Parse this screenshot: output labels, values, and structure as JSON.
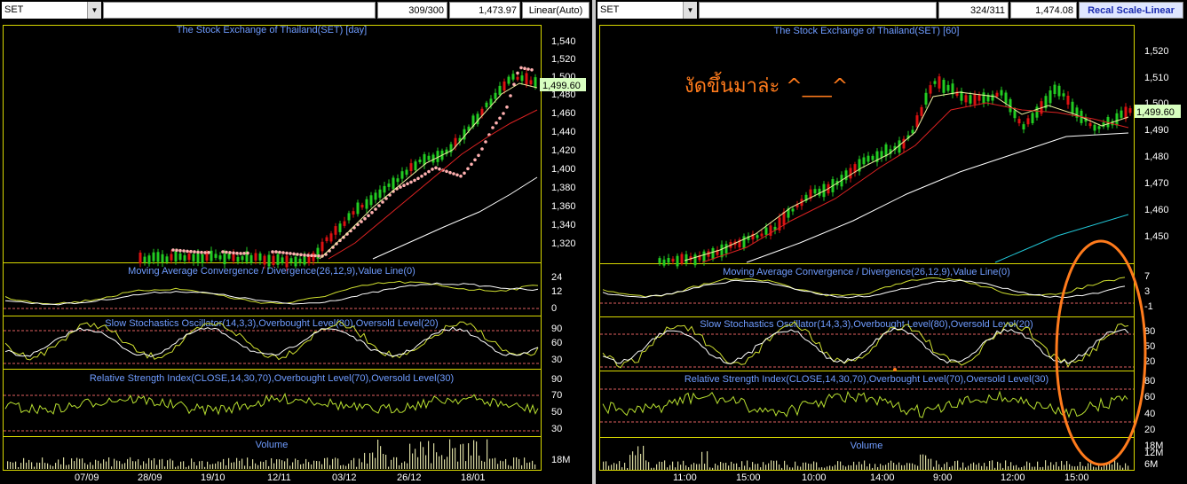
{
  "left": {
    "symbol": "SET",
    "counter": "309/300",
    "last_value": "1,473.97",
    "scale_label": "Linear(Auto)",
    "price_title": "The Stock Exchange of Thailand(SET) [day]",
    "price_ticks": [
      "1,540",
      "1,520",
      "1,500",
      "1,480",
      "1,460",
      "1,440",
      "1,420",
      "1,400",
      "1,380",
      "1,360",
      "1,340",
      "1,320"
    ],
    "price_tag": "1,499.60",
    "macd_title": "Moving Average Convergence / Divergence(26,12,9),Value Line(0)",
    "macd_ticks": [
      "24",
      "12",
      "0"
    ],
    "stoch_title": "Slow Stochastics Oscillator(14,3,3),Overbought Level(80),Oversold Level(20)",
    "stoch_ticks": [
      "90",
      "60",
      "30"
    ],
    "rsi_title": "Relative Strength Index(CLOSE,14,30,70),Overbought Level(70),Oversold Level(30)",
    "rsi_ticks": [
      "90",
      "70",
      "50",
      "30"
    ],
    "volume_title": "Volume",
    "volume_ticks": [
      "18M"
    ],
    "date_ticks": [
      "07/09",
      "28/09",
      "19/10",
      "12/11",
      "03/12",
      "26/12",
      "18/01"
    ]
  },
  "right": {
    "symbol": "SET",
    "counter": "324/311",
    "last_value": "1,474.08",
    "scale_label": "Recal Scale-Linear",
    "price_title": "The Stock Exchange of Thailand(SET) [60]",
    "price_ticks": [
      "1,520",
      "1,510",
      "1,500",
      "1,490",
      "1,480",
      "1,470",
      "1,460",
      "1,450"
    ],
    "price_tag": "1,499.60",
    "annotation": "งัดขึ้นมาล่ะ ^___^",
    "macd_title": "Moving Average Convergence / Divergence(26,12,9),Value Line(0)",
    "macd_ticks": [
      "7",
      "3",
      "-1"
    ],
    "stoch_title": "Slow Stochastics Oscillator(14,3,3),Overbought Level(80),Oversold Level(20)",
    "stoch_ticks": [
      "80",
      "50",
      "20"
    ],
    "rsi_title": "Relative Strength Index(CLOSE,14,30,70),Overbought Level(70),Oversold Level(30)",
    "rsi_ticks": [
      "80",
      "60",
      "40",
      "20"
    ],
    "volume_title": "Volume",
    "volume_ticks": [
      "18M",
      "12M",
      "6M"
    ],
    "date_ticks": [
      "11:00",
      "15:00",
      "10:00",
      "14:00",
      "9:00",
      "12:00",
      "15:00"
    ]
  },
  "colors": {
    "up": "#22cc22",
    "down": "#dd1111",
    "panel_border": "#d8d800",
    "level_line": "#e06060",
    "indicator": "#d0e030",
    "annotation": "#ff7b1c"
  }
}
